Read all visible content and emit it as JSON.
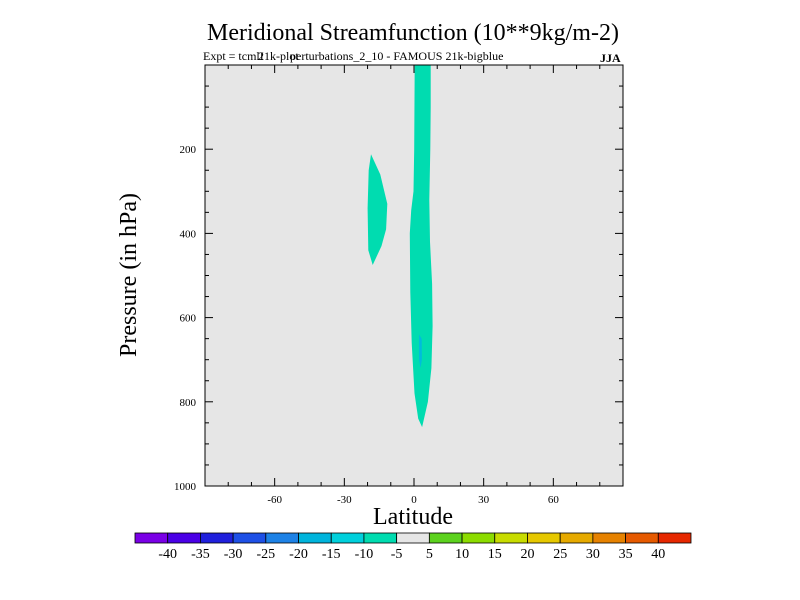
{
  "chart_data": {
    "type": "contour",
    "title": "Meridional Streamfunction (10**9kg/m-2)",
    "subtitle_left": "Expt = tcmlI",
    "subtitle_overlay": "21k-plot",
    "subtitle_center": "perturbations_2_10 - FAMOUS 21k-bigblue",
    "season": "JJA",
    "xlabel": "Latitude",
    "ylabel": "Pressure (in hPa)",
    "xlim": [
      -90,
      90
    ],
    "ylim": [
      1000,
      0
    ],
    "x_ticks": [
      -60,
      -30,
      0,
      30,
      60
    ],
    "y_ticks": [
      200,
      400,
      600,
      800,
      1000
    ],
    "background_color": "#e6e6e6",
    "regions": [
      {
        "name": "northern-cell",
        "level": "-10 to -5",
        "color": "#00dcb0",
        "outline": [
          [
            0.3,
            0
          ],
          [
            7.2,
            0
          ],
          [
            7.2,
            100
          ],
          [
            7.0,
            200
          ],
          [
            6.6,
            320
          ],
          [
            6.9,
            420
          ],
          [
            7.8,
            520
          ],
          [
            8.0,
            620
          ],
          [
            7.5,
            720
          ],
          [
            6.0,
            800
          ],
          [
            3.5,
            860
          ],
          [
            1.8,
            840
          ],
          [
            0.2,
            780
          ],
          [
            -1.0,
            660
          ],
          [
            -1.6,
            540
          ],
          [
            -1.8,
            400
          ],
          [
            -1.2,
            345
          ],
          [
            -0.2,
            300
          ],
          [
            0.1,
            200
          ]
        ]
      },
      {
        "name": "core-cell",
        "level": "-15 to -10",
        "color": "#00bcdc",
        "outline": [
          [
            2.2,
            640
          ],
          [
            3.3,
            650
          ],
          [
            3.4,
            700
          ],
          [
            2.8,
            720
          ],
          [
            2.2,
            700
          ]
        ]
      },
      {
        "name": "southern-cell",
        "level": "-10 to -5",
        "color": "#00dcb0",
        "outline": [
          [
            -18.5,
            212
          ],
          [
            -14.5,
            260
          ],
          [
            -11.5,
            330
          ],
          [
            -12.0,
            390
          ],
          [
            -14.0,
            430
          ],
          [
            -17.8,
            475
          ],
          [
            -19.7,
            440
          ],
          [
            -20.0,
            340
          ],
          [
            -19.5,
            250
          ]
        ]
      }
    ],
    "colorbar": {
      "labels": [
        "-40",
        "-35",
        "-30",
        "-25",
        "-20",
        "-15",
        "-10",
        "-5",
        "5",
        "10",
        "15",
        "20",
        "25",
        "30",
        "35",
        "40"
      ],
      "colors": [
        "#7a00e6",
        "#4a00e6",
        "#2020dc",
        "#1e50e6",
        "#1e82e6",
        "#00b4dc",
        "#00d0dc",
        "#00dcb0",
        "#e6e6e6",
        "#5cd21e",
        "#8cdc00",
        "#c8dc00",
        "#e6c800",
        "#e6aa00",
        "#e68200",
        "#e65a00",
        "#e62800"
      ]
    }
  }
}
